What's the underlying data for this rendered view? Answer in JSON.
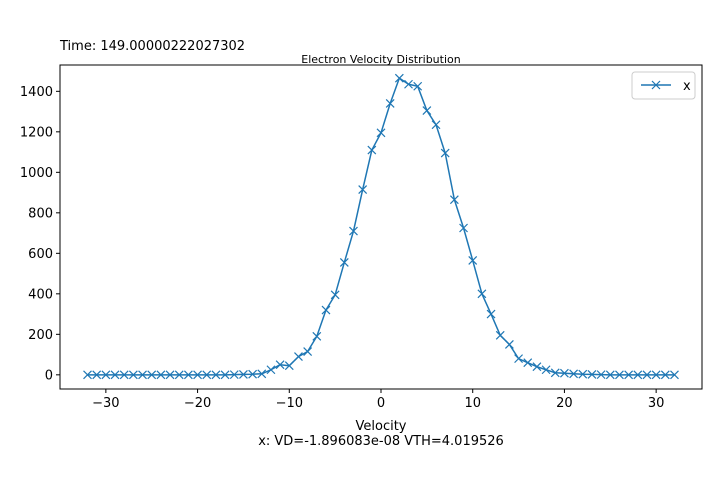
{
  "header": {
    "time_label": "Time: 149.00000222027302"
  },
  "chart_data": {
    "type": "line",
    "title": "Electron Velocity Distribution",
    "xlabel": "Velocity",
    "xlabel_sub": "x: VD=-1.896083e-08   VTH=4.019526",
    "ylabel": "",
    "xlim": [
      -35,
      35
    ],
    "ylim": [
      -70,
      1530
    ],
    "x_ticks": [
      -30,
      -20,
      -10,
      0,
      10,
      20,
      30
    ],
    "y_ticks": [
      0,
      200,
      400,
      600,
      800,
      1000,
      1200,
      1400
    ],
    "grid": false,
    "legend": "top-right",
    "series": [
      {
        "name": "x",
        "color": "#1f77b4",
        "marker": "x",
        "x": [
          -32,
          -31,
          -30,
          -29,
          -28,
          -27,
          -26,
          -25,
          -24,
          -23,
          -22,
          -21,
          -20,
          -19,
          -18,
          -17,
          -16,
          -15,
          -14,
          -13,
          -12,
          -11,
          -10,
          -9,
          -8,
          -7,
          -6,
          -5,
          -4,
          -3,
          -2,
          -1,
          0,
          1,
          2,
          3,
          4,
          5,
          6,
          7,
          8,
          9,
          10,
          11,
          12,
          13,
          14,
          15,
          16,
          17,
          18,
          19,
          20,
          21,
          22,
          23,
          24,
          25,
          26,
          27,
          28,
          29,
          30,
          31,
          32
        ],
        "y": [
          0,
          0,
          0,
          0,
          0,
          0,
          0,
          0,
          0,
          0,
          0,
          0,
          0,
          0,
          0,
          0,
          1,
          2,
          3,
          5,
          25,
          50,
          45,
          90,
          115,
          190,
          320,
          395,
          555,
          710,
          915,
          1110,
          1195,
          1340,
          1465,
          1435,
          1425,
          1305,
          1235,
          1095,
          865,
          725,
          565,
          400,
          300,
          195,
          150,
          80,
          60,
          40,
          25,
          10,
          8,
          5,
          3,
          2,
          1,
          0,
          0,
          0,
          0,
          0,
          0,
          0,
          0
        ]
      }
    ]
  }
}
